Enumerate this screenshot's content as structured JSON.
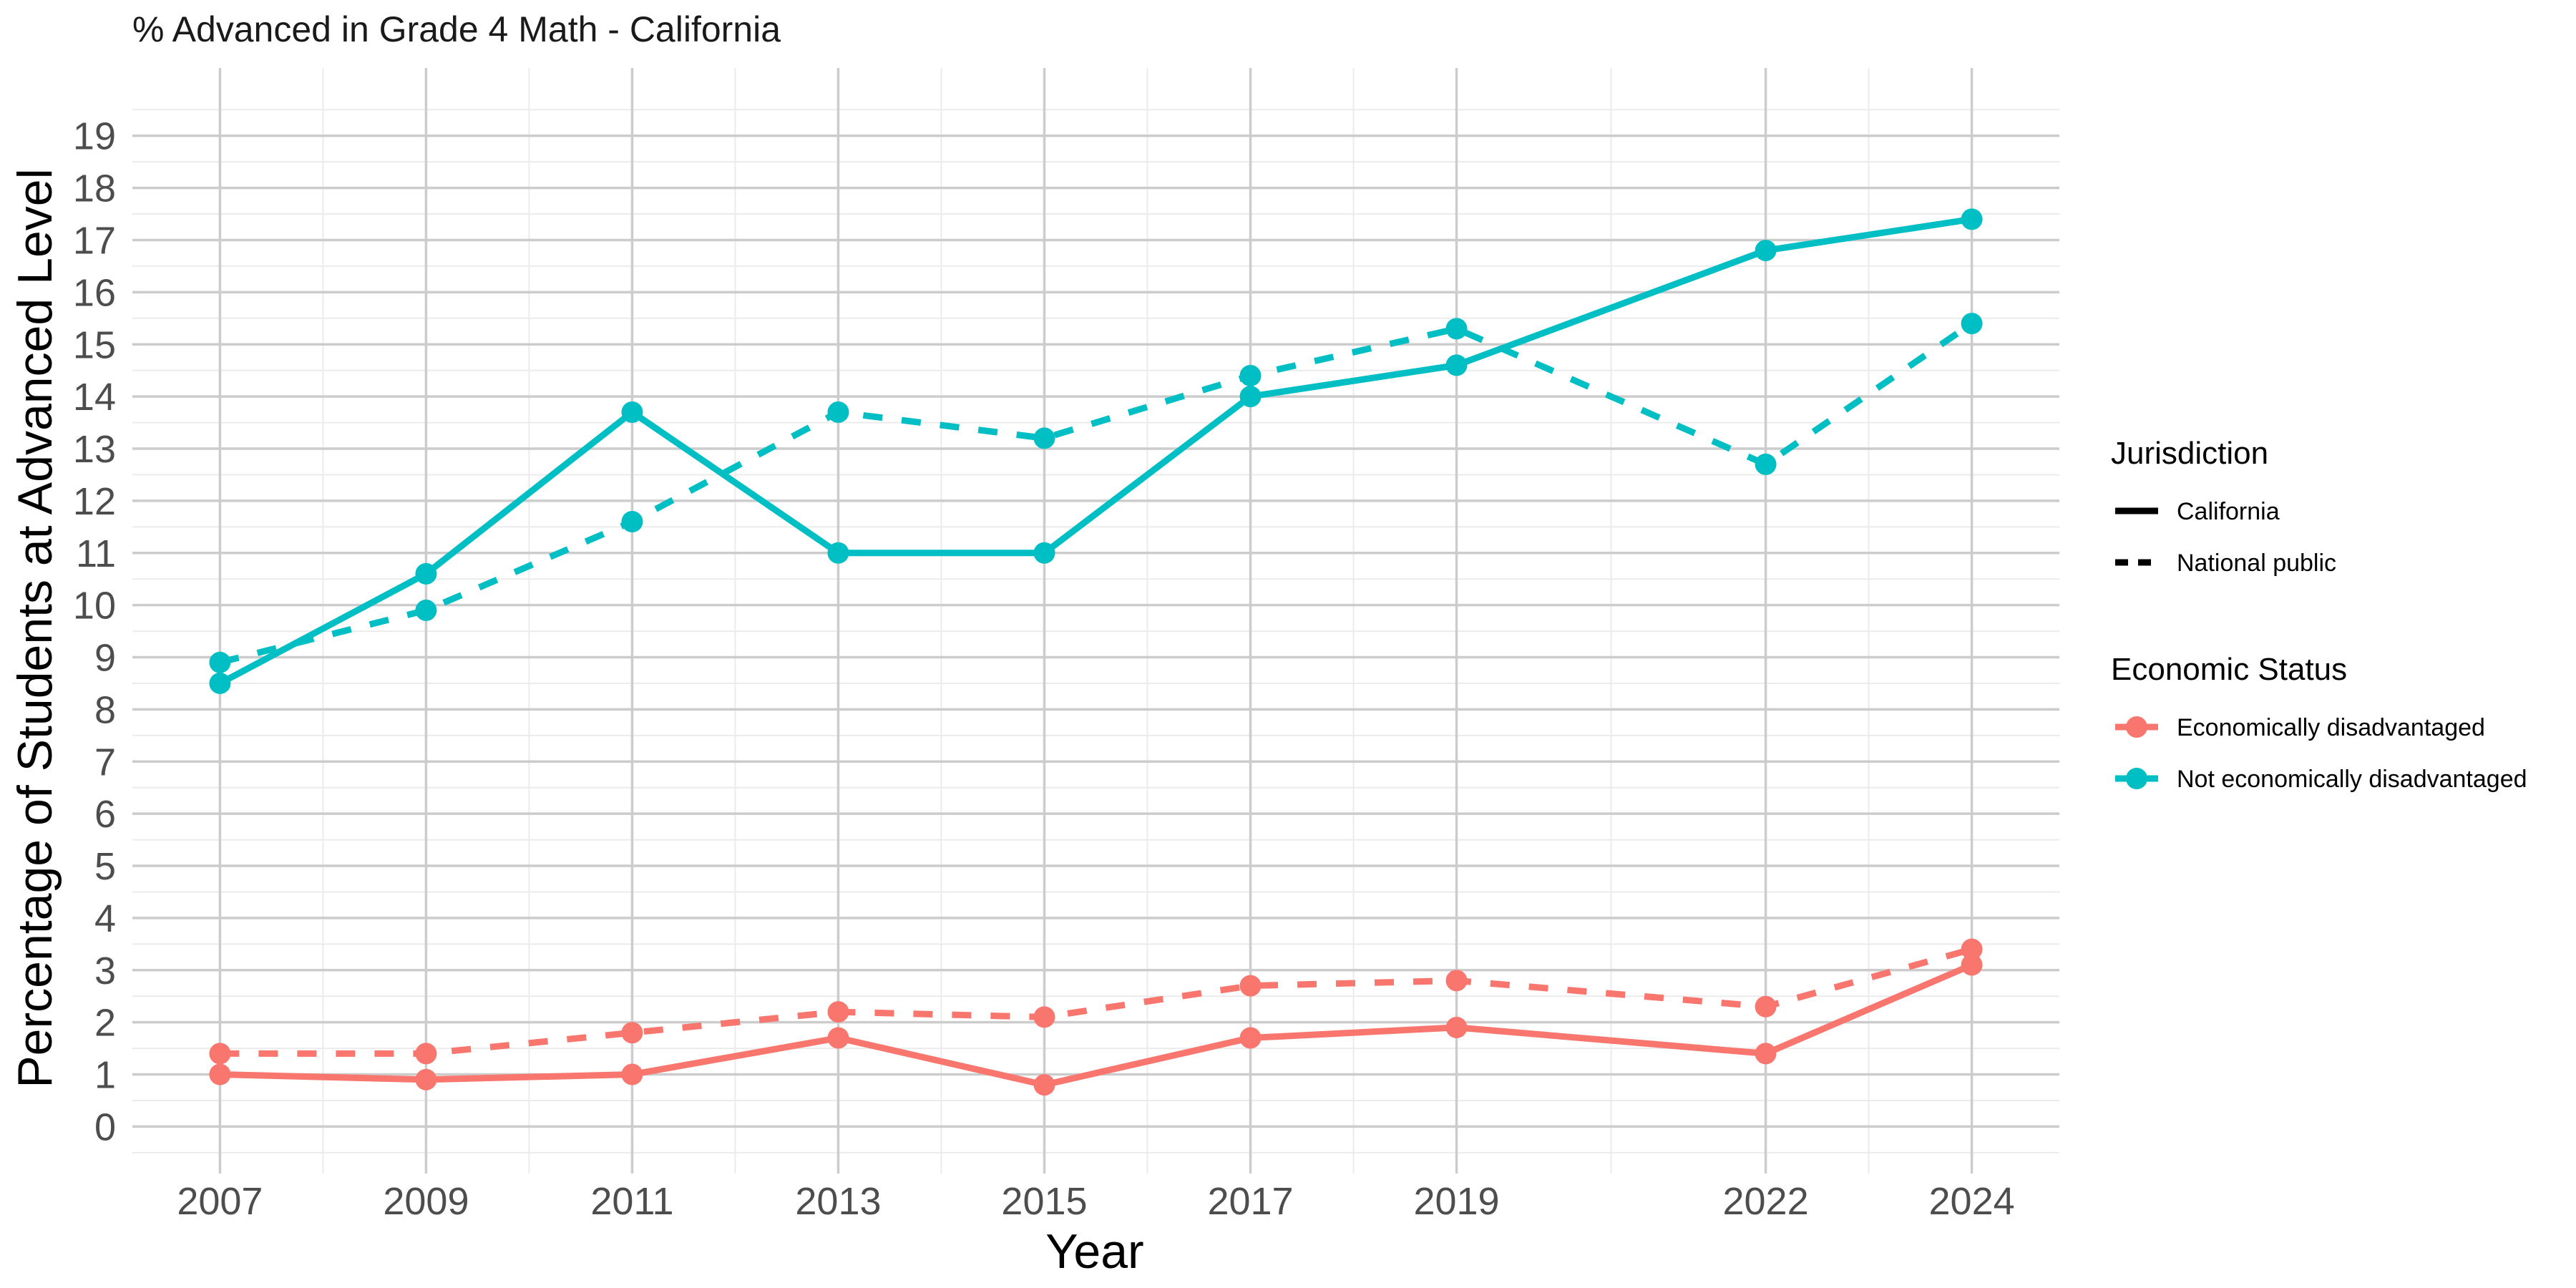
{
  "chart_data": {
    "type": "line",
    "title": "% Advanced in Grade 4 Math - California",
    "xlabel": "Year",
    "ylabel": "Percentage of Students at Advanced Level",
    "x": [
      2007,
      2009,
      2011,
      2013,
      2015,
      2017,
      2019,
      2022,
      2024
    ],
    "x_tick_labels": [
      "2007",
      "2009",
      "2011",
      "2013",
      "2015",
      "2017",
      "2019",
      "2022",
      "2024"
    ],
    "xlim": [
      2006.15,
      2024.85
    ],
    "ylim": [
      -0.9,
      20.3
    ],
    "y_ticks": [
      0,
      1,
      2,
      3,
      4,
      5,
      6,
      7,
      8,
      9,
      10,
      11,
      12,
      13,
      14,
      15,
      16,
      17,
      18,
      19
    ],
    "y_tick_labels": [
      "0",
      "1",
      "2",
      "3",
      "4",
      "5",
      "6",
      "7",
      "8",
      "9",
      "10",
      "11",
      "12",
      "13",
      "14",
      "15",
      "16",
      "17",
      "18",
      "19"
    ],
    "grid": true,
    "legend_position": "right",
    "legends": [
      {
        "title": "Jurisdiction",
        "entries": [
          {
            "label": "California",
            "linetype": "solid"
          },
          {
            "label": "National public",
            "linetype": "dashed"
          }
        ]
      },
      {
        "title": "Economic Status",
        "entries": [
          {
            "label": "Economically disadvantaged",
            "color": "#F8766D"
          },
          {
            "label": "Not economically disadvantaged",
            "color": "#00BFC4"
          }
        ]
      }
    ],
    "series": [
      {
        "economic_status": "Not economically disadvantaged",
        "jurisdiction": "California",
        "color": "#00BFC4",
        "linetype": "solid",
        "values": [
          8.5,
          10.6,
          13.7,
          11.0,
          11.0,
          14.0,
          14.6,
          16.8,
          17.4
        ]
      },
      {
        "economic_status": "Not economically disadvantaged",
        "jurisdiction": "National public",
        "color": "#00BFC4",
        "linetype": "dashed",
        "values": [
          8.9,
          9.9,
          11.6,
          13.7,
          13.2,
          14.4,
          15.3,
          12.7,
          15.4
        ]
      },
      {
        "economic_status": "Economically disadvantaged",
        "jurisdiction": "California",
        "color": "#F8766D",
        "linetype": "solid",
        "values": [
          1.0,
          0.9,
          1.0,
          1.7,
          0.8,
          1.7,
          1.9,
          1.4,
          3.1
        ]
      },
      {
        "economic_status": "Economically disadvantaged",
        "jurisdiction": "National public",
        "color": "#F8766D",
        "linetype": "dashed",
        "values": [
          1.4,
          1.4,
          1.8,
          2.2,
          2.1,
          2.7,
          2.8,
          2.3,
          3.4
        ]
      }
    ]
  }
}
